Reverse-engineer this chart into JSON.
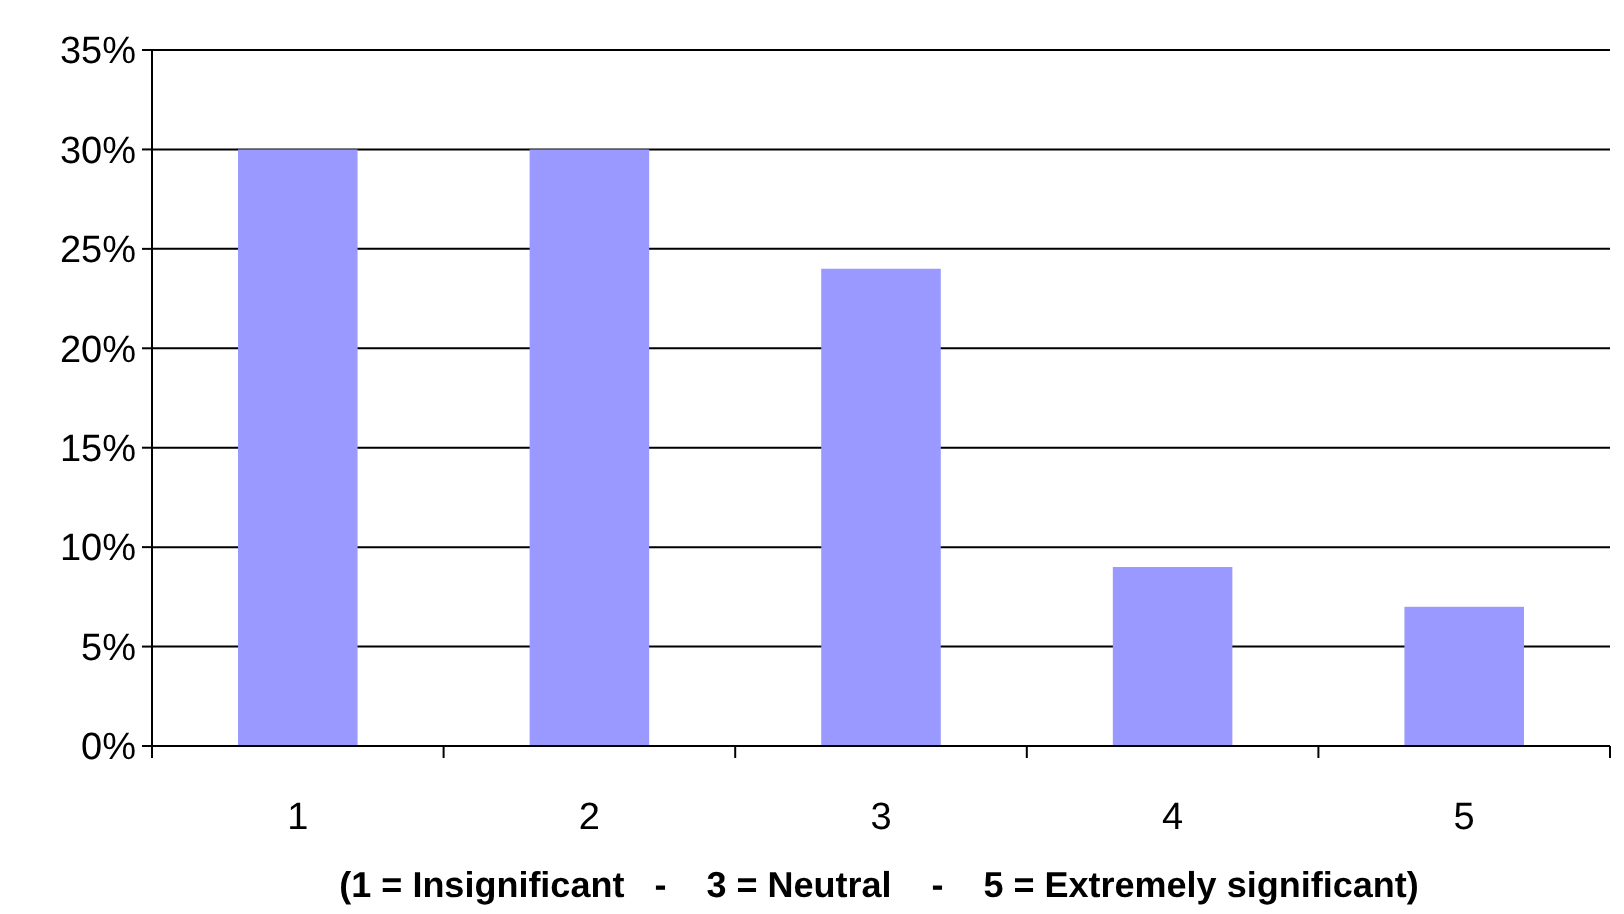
{
  "chart_data": {
    "type": "bar",
    "categories": [
      "1",
      "2",
      "3",
      "4",
      "5"
    ],
    "values": [
      30,
      30,
      24,
      9,
      7
    ],
    "color": "#9999ff",
    "xlabel": "(1 = Insignificant   -    3 = Neutral    -    5 = Extremely significant)",
    "ylim": [
      0,
      35
    ],
    "yticks": [
      {
        "value": 0,
        "label": "0%"
      },
      {
        "value": 5,
        "label": "5%"
      },
      {
        "value": 10,
        "label": "10%"
      },
      {
        "value": 15,
        "label": "15%"
      },
      {
        "value": 20,
        "label": "20%"
      },
      {
        "value": 25,
        "label": "25%"
      },
      {
        "value": 30,
        "label": "30%"
      },
      {
        "value": 35,
        "label": "35%"
      }
    ],
    "grid": "y"
  }
}
